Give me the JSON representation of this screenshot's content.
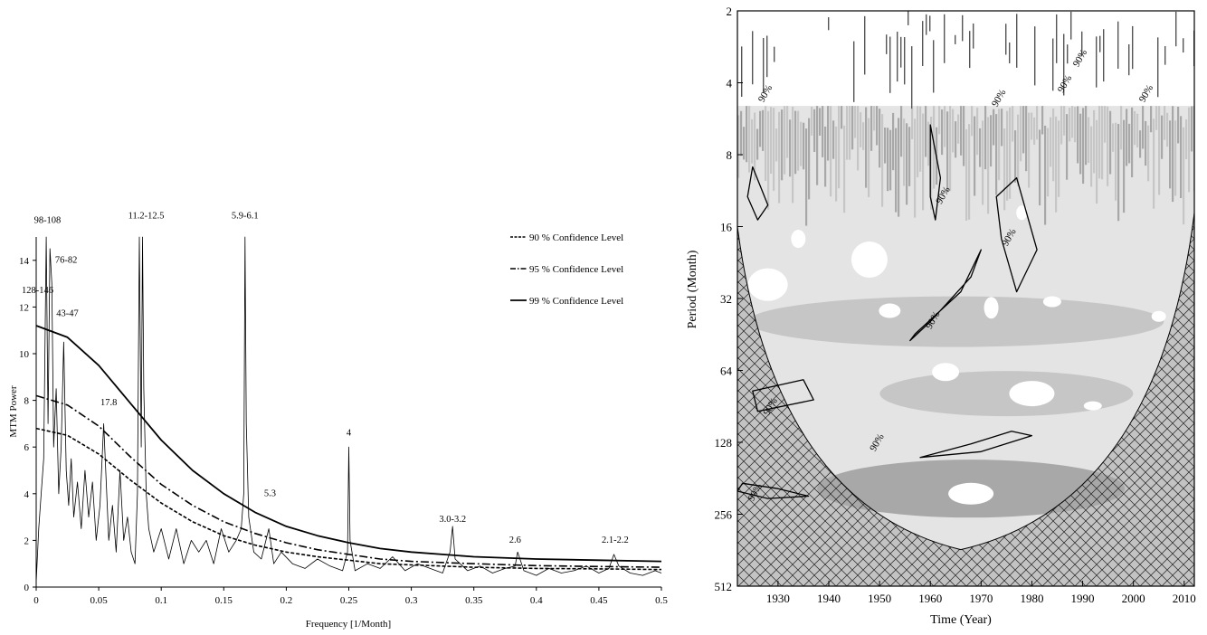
{
  "chart_data": [
    {
      "type": "line",
      "title": "",
      "xlabel": "Frequency  [1/Month]",
      "ylabel": "MTM Power",
      "xlim": [
        0,
        0.5
      ],
      "ylim": [
        0,
        15
      ],
      "grid": false,
      "legend_position": "top-right",
      "xticks": [
        0,
        0.05,
        0.1,
        0.15,
        0.2,
        0.25,
        0.3,
        0.35,
        0.4,
        0.45,
        0.5
      ],
      "xtick_labels": [
        "0",
        "0.05",
        "0.1",
        "0.15",
        "0.2",
        "0.25",
        "0.3",
        "0.35",
        "0.4",
        "0.45",
        "0.5"
      ],
      "yticks": [
        0,
        2,
        4,
        6,
        8,
        10,
        12,
        14
      ],
      "ytick_labels": [
        "0",
        "2",
        "4",
        "6",
        "8",
        "10",
        "12",
        "14"
      ],
      "series": [
        {
          "name": "",
          "style": "thin-solid",
          "x": [
            0,
            0.002,
            0.004,
            0.006,
            0.008,
            0.0095,
            0.011,
            0.0125,
            0.014,
            0.016,
            0.018,
            0.02,
            0.022,
            0.024,
            0.026,
            0.028,
            0.03,
            0.033,
            0.036,
            0.039,
            0.042,
            0.045,
            0.048,
            0.051,
            0.054,
            0.056,
            0.058,
            0.061,
            0.064,
            0.067,
            0.07,
            0.073,
            0.076,
            0.079,
            0.081,
            0.0825,
            0.084,
            0.085,
            0.086,
            0.088,
            0.09,
            0.094,
            0.1,
            0.106,
            0.112,
            0.118,
            0.124,
            0.13,
            0.136,
            0.142,
            0.148,
            0.154,
            0.16,
            0.164,
            0.166,
            0.167,
            0.168,
            0.17,
            0.174,
            0.18,
            0.186,
            0.19,
            0.196,
            0.205,
            0.215,
            0.225,
            0.235,
            0.245,
            0.249,
            0.25,
            0.251,
            0.255,
            0.265,
            0.275,
            0.285,
            0.295,
            0.305,
            0.315,
            0.325,
            0.331,
            0.333,
            0.335,
            0.345,
            0.355,
            0.365,
            0.375,
            0.383,
            0.385,
            0.39,
            0.4,
            0.41,
            0.42,
            0.43,
            0.44,
            0.45,
            0.458,
            0.462,
            0.466,
            0.475,
            0.485,
            0.495,
            0.5
          ],
          "y": [
            0.2,
            2.5,
            4.0,
            5.5,
            15.0,
            7.0,
            14.5,
            13.0,
            6.0,
            8.5,
            4.0,
            6.0,
            10.5,
            5.0,
            3.5,
            5.5,
            3.0,
            4.5,
            2.5,
            5.0,
            3.0,
            4.5,
            2.0,
            3.5,
            7.0,
            4.5,
            2.0,
            3.5,
            1.5,
            5.0,
            2.0,
            3.0,
            1.5,
            1.0,
            4.0,
            15.0,
            6.0,
            15.0,
            8.5,
            4.0,
            2.5,
            1.5,
            2.5,
            1.2,
            2.5,
            1.0,
            2.0,
            1.5,
            2.0,
            1.0,
            2.5,
            1.5,
            2.0,
            2.5,
            4.0,
            15.0,
            7.0,
            3.0,
            1.5,
            1.2,
            2.5,
            1.0,
            1.5,
            1.0,
            0.8,
            1.2,
            0.9,
            0.7,
            1.5,
            6.0,
            2.0,
            0.7,
            1.0,
            0.8,
            1.3,
            0.7,
            1.0,
            0.8,
            0.6,
            1.5,
            2.6,
            1.2,
            0.7,
            0.9,
            0.6,
            0.8,
            0.9,
            1.5,
            0.7,
            0.5,
            0.8,
            0.6,
            0.7,
            0.9,
            0.6,
            0.8,
            1.4,
            0.9,
            0.6,
            0.5,
            0.7,
            0.6
          ]
        },
        {
          "name": "90 % Confidence Level",
          "style": "dashed",
          "x": [
            0,
            0.025,
            0.05,
            0.075,
            0.1,
            0.125,
            0.15,
            0.175,
            0.2,
            0.225,
            0.25,
            0.275,
            0.3,
            0.35,
            0.4,
            0.45,
            0.5
          ],
          "y": [
            6.8,
            6.5,
            5.7,
            4.6,
            3.6,
            2.8,
            2.2,
            1.8,
            1.5,
            1.3,
            1.15,
            1.0,
            0.95,
            0.85,
            0.8,
            0.78,
            0.75
          ]
        },
        {
          "name": "95 % Confidence Level",
          "style": "dash-dot",
          "x": [
            0,
            0.025,
            0.05,
            0.075,
            0.1,
            0.125,
            0.15,
            0.175,
            0.2,
            0.225,
            0.25,
            0.275,
            0.3,
            0.35,
            0.4,
            0.45,
            0.5
          ],
          "y": [
            8.2,
            7.8,
            6.9,
            5.6,
            4.4,
            3.5,
            2.8,
            2.3,
            1.9,
            1.6,
            1.4,
            1.2,
            1.1,
            1.0,
            0.92,
            0.88,
            0.85
          ]
        },
        {
          "name": "99 % Confidence Level",
          "style": "solid",
          "x": [
            0,
            0.025,
            0.05,
            0.075,
            0.1,
            0.125,
            0.15,
            0.175,
            0.2,
            0.225,
            0.25,
            0.275,
            0.3,
            0.35,
            0.4,
            0.45,
            0.5
          ],
          "y": [
            11.2,
            10.7,
            9.5,
            7.9,
            6.3,
            5.0,
            4.0,
            3.2,
            2.6,
            2.2,
            1.9,
            1.65,
            1.5,
            1.3,
            1.2,
            1.15,
            1.1
          ]
        }
      ],
      "annotations": [
        {
          "text": "98-108",
          "x": 0.009,
          "y": 15.6
        },
        {
          "text": "11.2-12.5",
          "x": 0.088,
          "y": 15.8
        },
        {
          "text": "5.9-6.1",
          "x": 0.167,
          "y": 15.8
        },
        {
          "text": "76-82",
          "x": 0.024,
          "y": 13.9
        },
        {
          "text": "128-146",
          "x": 0.0,
          "y": 12.6
        },
        {
          "text": "43-47",
          "x": 0.025,
          "y": 11.6
        },
        {
          "text": "17.8",
          "x": 0.058,
          "y": 7.8
        },
        {
          "text": "4",
          "x": 0.25,
          "y": 6.5
        },
        {
          "text": "5.3",
          "x": 0.187,
          "y": 3.9
        },
        {
          "text": "3.0-3.2",
          "x": 0.333,
          "y": 2.8
        },
        {
          "text": "2.6",
          "x": 0.383,
          "y": 1.9
        },
        {
          "text": "2.1-2.2",
          "x": 0.463,
          "y": 1.9
        }
      ]
    },
    {
      "type": "heatmap",
      "title": "",
      "xlabel": "Time (Year)",
      "ylabel": "Period (Month)",
      "xlim": [
        1922,
        2012
      ],
      "ylim": [
        2,
        512
      ],
      "y_scale": "log2",
      "y_inverted": true,
      "xticks": [
        1930,
        1940,
        1950,
        1960,
        1970,
        1980,
        1990,
        2000,
        2010
      ],
      "xtick_labels": [
        "1930",
        "1940",
        "1950",
        "1960",
        "1970",
        "1980",
        "1990",
        "2000",
        "2010"
      ],
      "yticks": [
        2,
        4,
        8,
        16,
        32,
        64,
        128,
        256,
        512
      ],
      "ytick_labels": [
        "2",
        "4",
        "8",
        "16",
        "32",
        "64",
        "128",
        "256",
        "512"
      ],
      "colormap": [
        "#ffffff",
        "#e4e4e4",
        "#c6c6c6",
        "#a8a8a8",
        "#8a8a8a"
      ],
      "cone_of_influence": "cross-hatched",
      "significance_contour_label": "90%",
      "contour_labels": [
        {
          "text": "90%",
          "x": 1928,
          "y": 4.5
        },
        {
          "text": "90%",
          "x": 1963,
          "y": 12
        },
        {
          "text": "90%",
          "x": 1974,
          "y": 4.7
        },
        {
          "text": "90%",
          "x": 1990,
          "y": 3.2
        },
        {
          "text": "90%",
          "x": 1987,
          "y": 4.1
        },
        {
          "text": "90%",
          "x": 2003,
          "y": 4.5
        },
        {
          "text": "90%",
          "x": 1976,
          "y": 18
        },
        {
          "text": "90%",
          "x": 1961,
          "y": 40
        },
        {
          "text": "90%",
          "x": 1929,
          "y": 92
        },
        {
          "text": "90%",
          "x": 1950,
          "y": 130
        },
        {
          "text": "90%",
          "x": 1926,
          "y": 210
        }
      ]
    }
  ]
}
